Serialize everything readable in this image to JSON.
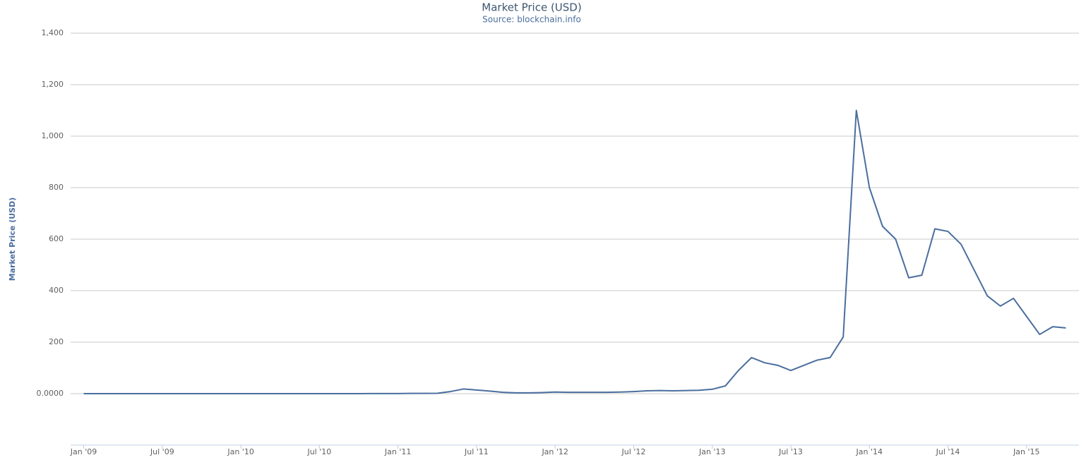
{
  "chart_data": {
    "type": "line",
    "title": "Market Price (USD)",
    "subtitle": "Source: blockchain.info",
    "y_label": "Market Price (USD)",
    "x": [
      "2009-01",
      "2009-02",
      "2009-03",
      "2009-04",
      "2009-05",
      "2009-06",
      "2009-07",
      "2009-08",
      "2009-09",
      "2009-10",
      "2009-11",
      "2009-12",
      "2010-01",
      "2010-02",
      "2010-03",
      "2010-04",
      "2010-05",
      "2010-06",
      "2010-07",
      "2010-08",
      "2010-09",
      "2010-10",
      "2010-11",
      "2010-12",
      "2011-01",
      "2011-02",
      "2011-03",
      "2011-04",
      "2011-05",
      "2011-06",
      "2011-07",
      "2011-08",
      "2011-09",
      "2011-10",
      "2011-11",
      "2011-12",
      "2012-01",
      "2012-02",
      "2012-03",
      "2012-04",
      "2012-05",
      "2012-06",
      "2012-07",
      "2012-08",
      "2012-09",
      "2012-10",
      "2012-11",
      "2012-12",
      "2013-01",
      "2013-02",
      "2013-03",
      "2013-04",
      "2013-05",
      "2013-06",
      "2013-07",
      "2013-08",
      "2013-09",
      "2013-10",
      "2013-11",
      "2013-12",
      "2014-01",
      "2014-02",
      "2014-03",
      "2014-04",
      "2014-05",
      "2014-06",
      "2014-07",
      "2014-08",
      "2014-09",
      "2014-10",
      "2014-11",
      "2014-12",
      "2015-01",
      "2015-02",
      "2015-03",
      "2015-04"
    ],
    "series": [
      {
        "name": "Market Price (USD)",
        "color": "#4a6e9e",
        "values": [
          0,
          0,
          0,
          0,
          0,
          0,
          0,
          0,
          0,
          0,
          0,
          0,
          0,
          0,
          0,
          0,
          0,
          0,
          0,
          0.1,
          0.1,
          0.1,
          0.2,
          0.3,
          0.3,
          1,
          0.9,
          1.5,
          8,
          18,
          14,
          10,
          5,
          3,
          3,
          4,
          6,
          5,
          5,
          5,
          5,
          6,
          8,
          11,
          12,
          11,
          12,
          13,
          17,
          30,
          90,
          140,
          120,
          110,
          90,
          110,
          130,
          140,
          220,
          1100,
          800,
          650,
          600,
          450,
          460,
          640,
          630,
          580,
          480,
          380,
          340,
          370,
          300,
          230,
          260,
          255
        ]
      }
    ],
    "xlim": [
      "2008-12",
      "2015-05"
    ],
    "xticks": [
      {
        "value": "2009-01",
        "label": "Jan '09"
      },
      {
        "value": "2009-07",
        "label": "Jul '09"
      },
      {
        "value": "2010-01",
        "label": "Jan '10"
      },
      {
        "value": "2010-07",
        "label": "Jul '10"
      },
      {
        "value": "2011-01",
        "label": "Jan '11"
      },
      {
        "value": "2011-07",
        "label": "Jul '11"
      },
      {
        "value": "2012-01",
        "label": "Jan '12"
      },
      {
        "value": "2012-07",
        "label": "Jul '12"
      },
      {
        "value": "2013-01",
        "label": "Jan '13"
      },
      {
        "value": "2013-07",
        "label": "Jul '13"
      },
      {
        "value": "2014-01",
        "label": "Jan '14"
      },
      {
        "value": "2014-07",
        "label": "Jul '14"
      },
      {
        "value": "2015-01",
        "label": "Jan '15"
      }
    ],
    "ylim": [
      -200,
      1400
    ],
    "yticks": [
      {
        "value": 0,
        "label": "0.0000"
      },
      200,
      400,
      600,
      800,
      {
        "value": 1000,
        "label": "1,000"
      },
      {
        "value": 1200,
        "label": "1,200"
      },
      {
        "value": 1400,
        "label": "1,400"
      }
    ],
    "grid": true
  }
}
